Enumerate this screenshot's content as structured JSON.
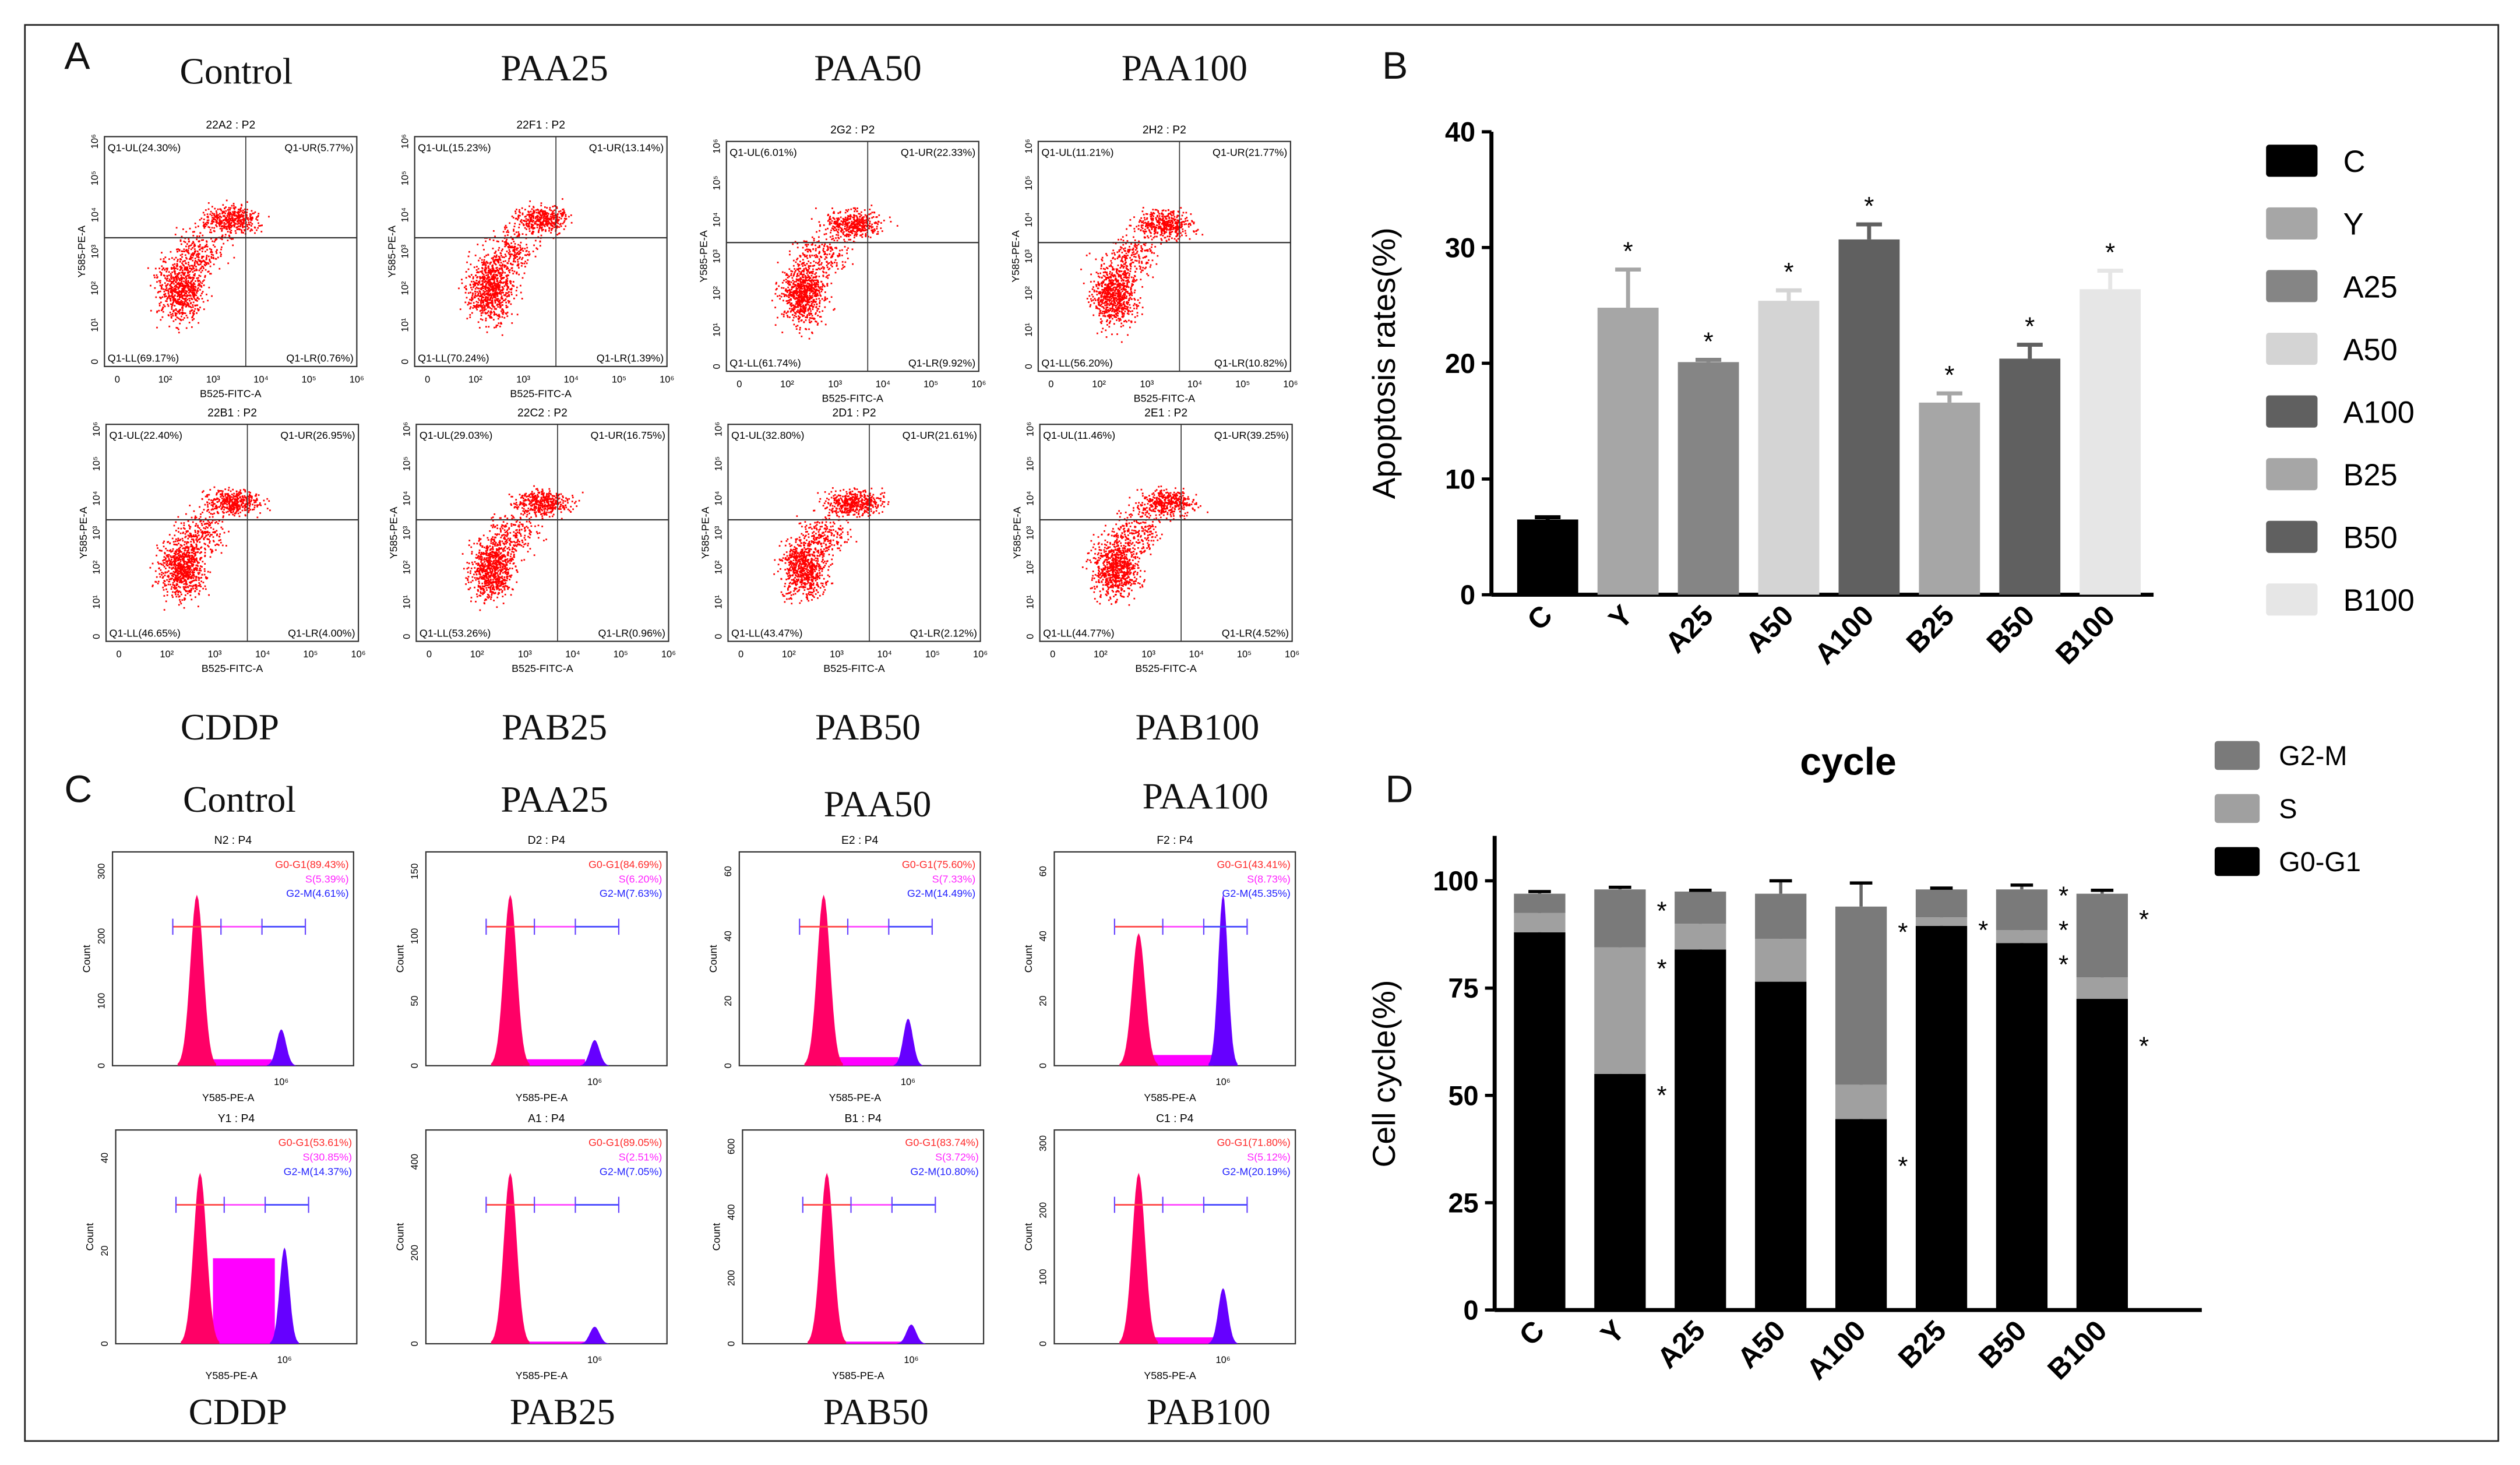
{
  "panels": {
    "a": "A",
    "b": "B",
    "c": "C",
    "d": "D"
  },
  "flow": {
    "top_labels": [
      "Control",
      "PAA25",
      "PAA50",
      "PAA100"
    ],
    "bottom_labels": [
      "CDDP",
      "PAB25",
      "PAB50",
      "PAB100"
    ],
    "x_axis": "B525-FITC-A",
    "y_axis": "Y585-PE-A",
    "x_ticks": [
      "0",
      "10²",
      "10³",
      "10⁴",
      "10⁵",
      "10⁶"
    ],
    "y_ticks": [
      "0",
      "10¹",
      "10²",
      "10³",
      "10⁴",
      "10⁵",
      "10⁶"
    ],
    "plots": [
      {
        "title": "22A2 : P2",
        "ul": "Q1-UL(24.30%)",
        "ur": "Q1-UR(5.77%)",
        "ll": "Q1-LL(69.17%)",
        "lr": "Q1-LR(0.76%)"
      },
      {
        "title": "22F1 : P2",
        "ul": "Q1-UL(15.23%)",
        "ur": "Q1-UR(13.14%)",
        "ll": "Q1-LL(70.24%)",
        "lr": "Q1-LR(1.39%)"
      },
      {
        "title": "2G2 : P2",
        "ul": "Q1-UL(6.01%)",
        "ur": "Q1-UR(22.33%)",
        "ll": "Q1-LL(61.74%)",
        "lr": "Q1-LR(9.92%)"
      },
      {
        "title": "2H2 : P2",
        "ul": "Q1-UL(11.21%)",
        "ur": "Q1-UR(21.77%)",
        "ll": "Q1-LL(56.20%)",
        "lr": "Q1-LR(10.82%)"
      },
      {
        "title": "22B1 : P2",
        "ul": "Q1-UL(22.40%)",
        "ur": "Q1-UR(26.95%)",
        "ll": "Q1-LL(46.65%)",
        "lr": "Q1-LR(4.00%)"
      },
      {
        "title": "22C2 : P2",
        "ul": "Q1-UL(29.03%)",
        "ur": "Q1-UR(16.75%)",
        "ll": "Q1-LL(53.26%)",
        "lr": "Q1-LR(0.96%)"
      },
      {
        "title": "2D1 : P2",
        "ul": "Q1-UL(32.80%)",
        "ur": "Q1-UR(21.61%)",
        "ll": "Q1-LL(43.47%)",
        "lr": "Q1-LR(2.12%)"
      },
      {
        "title": "2E1 : P2",
        "ul": "Q1-UL(11.46%)",
        "ur": "Q1-UR(39.25%)",
        "ll": "Q1-LL(44.77%)",
        "lr": "Q1-LR(4.52%)"
      }
    ]
  },
  "hist": {
    "top_labels": [
      "Control",
      "PAA25",
      "PAA50",
      "PAA100"
    ],
    "bottom_labels": [
      "CDDP",
      "PAB25",
      "PAB50",
      "PAB100"
    ],
    "x_axis": "Y585-PE-A",
    "y_axis": "Count",
    "x_tick": "10⁶",
    "plots": [
      {
        "title": "N2 : P4",
        "g0": "G0-G1(89.43%)",
        "s": "S(5.39%)",
        "g2": "G2-M(4.61%)",
        "yticks": [
          "0",
          "100",
          "200",
          "300"
        ],
        "ymax": 330,
        "g0p": 0.8,
        "g2p": 0.17,
        "sp": 0.03
      },
      {
        "title": "D2 : P4",
        "g0": "G0-G1(84.69%)",
        "s": "S(6.20%)",
        "g2": "G2-M(7.63%)",
        "yticks": [
          "0",
          "50",
          "100",
          "150"
        ],
        "ymax": 165,
        "g0p": 0.8,
        "g2p": 0.12,
        "sp": 0.03
      },
      {
        "title": "E2 : P4",
        "g0": "G0-G1(75.60%)",
        "s": "S(7.33%)",
        "g2": "G2-M(14.49%)",
        "yticks": [
          "0",
          "20",
          "40",
          "60"
        ],
        "ymax": 66,
        "g0p": 0.8,
        "g2p": 0.22,
        "sp": 0.04
      },
      {
        "title": "F2 : P4",
        "g0": "G0-G1(43.41%)",
        "s": "S(8.73%)",
        "g2": "G2-M(45.35%)",
        "yticks": [
          "0",
          "20",
          "40",
          "60"
        ],
        "ymax": 66,
        "g0p": 0.62,
        "g2p": 0.8,
        "sp": 0.05
      },
      {
        "title": "Y1 : P4",
        "g0": "G0-G1(53.61%)",
        "s": "S(30.85%)",
        "g2": "G2-M(14.37%)",
        "yticks": [
          "0",
          "20",
          "40"
        ],
        "ymax": 46,
        "g0p": 0.8,
        "g2p": 0.45,
        "sp": 0.4
      },
      {
        "title": "A1 : P4",
        "g0": "G0-G1(89.05%)",
        "s": "S(2.51%)",
        "g2": "G2-M(7.05%)",
        "yticks": [
          "0",
          "200",
          "400"
        ],
        "ymax": 470,
        "g0p": 0.8,
        "g2p": 0.08,
        "sp": 0.01
      },
      {
        "title": "B1 : P4",
        "g0": "G0-G1(83.74%)",
        "s": "S(3.72%)",
        "g2": "G2-M(10.80%)",
        "yticks": [
          "0",
          "200",
          "400",
          "600"
        ],
        "ymax": 650,
        "g0p": 0.8,
        "g2p": 0.09,
        "sp": 0.01
      },
      {
        "title": "C1 : P4",
        "g0": "G0-G1(71.80%)",
        "s": "S(5.12%)",
        "g2": "G2-M(20.19%)",
        "yticks": [
          "0",
          "100",
          "200",
          "300"
        ],
        "ymax": 320,
        "g0p": 0.8,
        "g2p": 0.26,
        "sp": 0.03
      }
    ]
  },
  "chart_data": [
    {
      "type": "bar",
      "title": "",
      "ylabel": "Apoptosis rates(%)",
      "ylim": [
        0,
        40
      ],
      "yticks": [
        "0",
        "10",
        "20",
        "30",
        "40"
      ],
      "categories": [
        "C",
        "Y",
        "A25",
        "A50",
        "A100",
        "B25",
        "B50",
        "B100"
      ],
      "values": [
        6.5,
        24.8,
        20.1,
        25.4,
        30.7,
        16.6,
        20.4,
        26.4
      ],
      "errors": [
        0.2,
        3.3,
        0.2,
        0.9,
        1.3,
        0.8,
        1.2,
        1.6
      ],
      "significance": [
        "",
        "*",
        "*",
        "*",
        "*",
        "*",
        "*",
        "*"
      ],
      "colors": [
        "#000000",
        "#a6a6a6",
        "#858585",
        "#d4d4d4",
        "#606060",
        "#a6a6a6",
        "#606060",
        "#e6e6e6"
      ],
      "legend": [
        "C",
        "Y",
        "A25",
        "A50",
        "A100",
        "B25",
        "B50",
        "B100"
      ],
      "legend_position": "right"
    },
    {
      "type": "bar",
      "stacked": true,
      "title": "cycle",
      "ylabel": "Cell cycle(%)",
      "ylim": [
        0,
        110
      ],
      "yticks": [
        "0",
        "25",
        "50",
        "75",
        "100"
      ],
      "categories": [
        "C",
        "Y",
        "A25",
        "A50",
        "A100",
        "B25",
        "B50",
        "B100"
      ],
      "series": [
        {
          "name": "G0-G1",
          "color": "#000000",
          "values": [
            88,
            55,
            84,
            76.5,
            44.5,
            89.5,
            85.5,
            72.5
          ],
          "errors": [
            2,
            1.5,
            1,
            1,
            1,
            0.5,
            2,
            1
          ]
        },
        {
          "name": "S",
          "color": "#a0a0a0",
          "values": [
            4.5,
            29.5,
            6,
            10,
            8,
            2,
            3,
            5
          ],
          "errors": [
            1,
            2,
            1,
            2,
            1,
            1,
            1,
            1
          ]
        },
        {
          "name": "G2-M",
          "color": "#7a7a7a",
          "values": [
            4.5,
            13.5,
            7.5,
            10.5,
            41.5,
            6.5,
            9.5,
            19.5
          ],
          "errors": [
            0.5,
            0.5,
            0.3,
            3,
            5.5,
            0.3,
            1,
            0.8
          ]
        }
      ],
      "legend": [
        "G2-M",
        "S",
        "G0-G1"
      ],
      "legend_position": "top-right",
      "significance": [
        [],
        [
          "*",
          "*",
          "*"
        ],
        [],
        [],
        [
          "*",
          "*"
        ],
        [
          "*"
        ],
        [
          "*",
          "*",
          "*"
        ],
        [
          "*",
          "*"
        ]
      ]
    }
  ]
}
